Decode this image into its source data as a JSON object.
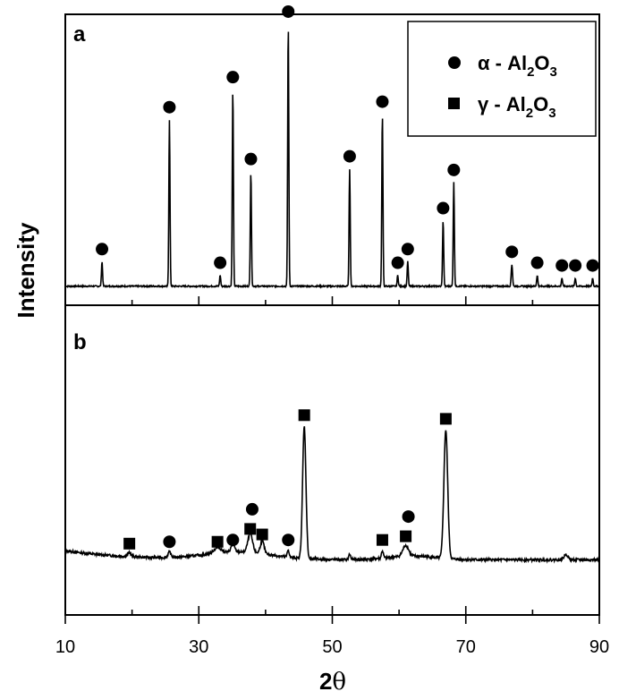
{
  "chart_data": {
    "type": "line",
    "x_axis": {
      "label_main": "2",
      "label_theta": "θ",
      "ticks": [
        10,
        30,
        50,
        70,
        90
      ],
      "tick_labels": [
        "10",
        "30",
        "50",
        "70",
        "90"
      ],
      "minor_ticks": [
        20,
        40,
        60,
        80
      ],
      "range": [
        10,
        90
      ]
    },
    "y_axis": {
      "label": "Intensity"
    },
    "legend": {
      "location": "top-right",
      "entries": [
        {
          "marker": "circle",
          "text_main": "α - Al",
          "sub1": "2",
          "mid": "O",
          "sub2": "3"
        },
        {
          "marker": "square",
          "text_main": "γ - Al",
          "sub1": "2",
          "mid": "O",
          "sub2": "3"
        }
      ]
    },
    "panels": [
      {
        "label": "a",
        "y_range": [
          0,
          100
        ],
        "baseline": 5,
        "peaks": [
          {
            "x": 15.5,
            "h": 9,
            "w": 0.12,
            "m": "circle"
          },
          {
            "x": 25.6,
            "h": 61,
            "w": 0.12,
            "m": "circle"
          },
          {
            "x": 33.2,
            "h": 4,
            "w": 0.12,
            "m": "circle"
          },
          {
            "x": 35.1,
            "h": 72,
            "w": 0.12,
            "m": "circle"
          },
          {
            "x": 37.8,
            "h": 42,
            "w": 0.12,
            "m": "circle"
          },
          {
            "x": 43.4,
            "h": 96,
            "w": 0.12,
            "m": "circle"
          },
          {
            "x": 52.6,
            "h": 43,
            "w": 0.12,
            "m": "circle"
          },
          {
            "x": 57.5,
            "h": 63,
            "w": 0.12,
            "m": "circle"
          },
          {
            "x": 59.8,
            "h": 4,
            "w": 0.12,
            "m": "circle"
          },
          {
            "x": 61.3,
            "h": 9,
            "w": 0.12,
            "m": "circle"
          },
          {
            "x": 66.6,
            "h": 24,
            "w": 0.12,
            "m": "circle"
          },
          {
            "x": 68.2,
            "h": 38,
            "w": 0.12,
            "m": "circle"
          },
          {
            "x": 76.9,
            "h": 8,
            "w": 0.14,
            "m": "circle"
          },
          {
            "x": 80.7,
            "h": 4,
            "w": 0.12,
            "m": "circle"
          },
          {
            "x": 84.4,
            "h": 3,
            "w": 0.12,
            "m": "circle"
          },
          {
            "x": 86.4,
            "h": 3,
            "w": 0.12,
            "m": "circle"
          },
          {
            "x": 89.0,
            "h": 3,
            "w": 0.12,
            "m": "circle"
          }
        ]
      },
      {
        "label": "b",
        "y_range": [
          0,
          100
        ],
        "baseline": 12,
        "peaks": [
          {
            "x": 19.6,
            "h": 2,
            "w": 0.4,
            "m": "square"
          },
          {
            "x": 25.6,
            "h": 3,
            "w": 0.3,
            "m": "circle"
          },
          {
            "x": 32.8,
            "h": 3,
            "w": 0.8,
            "m": "square"
          },
          {
            "x": 35.1,
            "h": 4,
            "w": 0.4,
            "m": "circle"
          },
          {
            "x": 37.7,
            "h": 10,
            "w": 0.5,
            "m": "square"
          },
          {
            "x": 38.0,
            "h": 0,
            "w": 0.5,
            "m": "circle"
          },
          {
            "x": 39.5,
            "h": 7,
            "w": 0.4,
            "m": "square"
          },
          {
            "x": 43.4,
            "h": 4,
            "w": 0.2,
            "m": "circle"
          },
          {
            "x": 45.8,
            "h": 72,
            "w": 0.35,
            "m": "square"
          },
          {
            "x": 52.6,
            "h": 3,
            "w": 0.2,
            "m": "none"
          },
          {
            "x": 57.5,
            "h": 4,
            "w": 0.2,
            "m": "square"
          },
          {
            "x": 61.0,
            "h": 6,
            "w": 0.6,
            "m": "square"
          },
          {
            "x": 61.4,
            "h": 0,
            "w": 0.4,
            "m": "circle"
          },
          {
            "x": 67.0,
            "h": 70,
            "w": 0.4,
            "m": "square"
          },
          {
            "x": 85.0,
            "h": 3,
            "w": 0.4,
            "m": "none"
          }
        ]
      }
    ]
  }
}
